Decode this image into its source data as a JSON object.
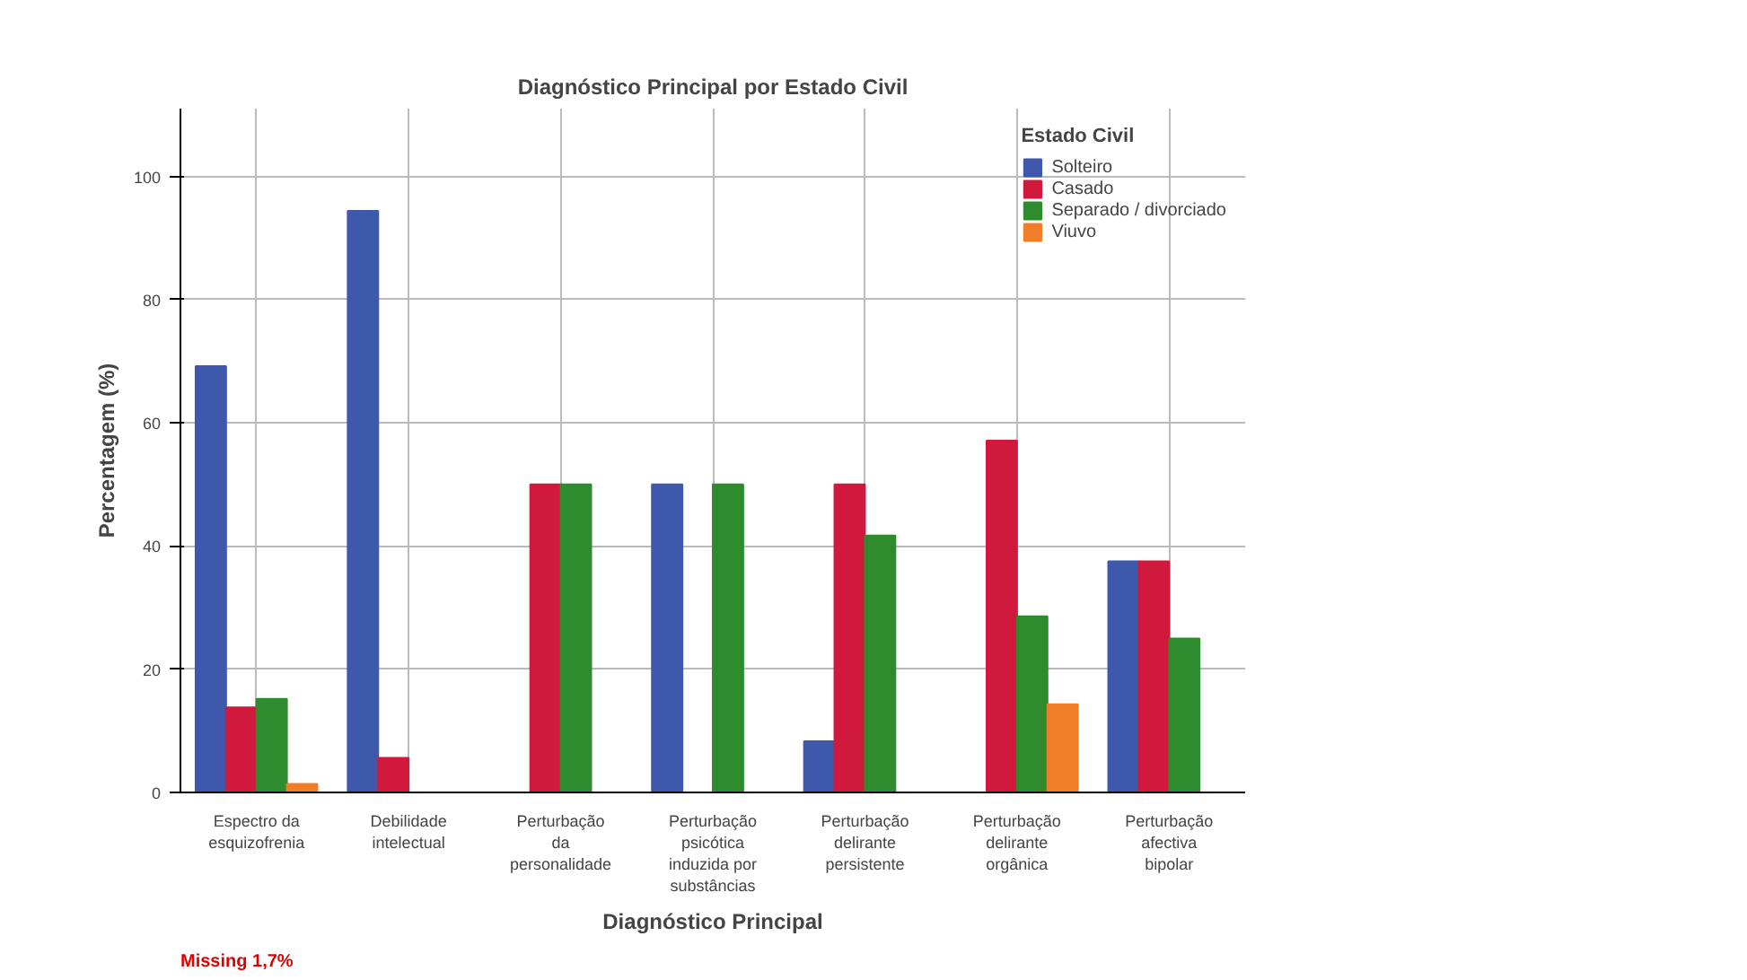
{
  "chart_data": {
    "type": "bar",
    "title": "Diagnóstico Principal por Estado Civil",
    "xlabel": "Diagnóstico Principal",
    "ylabel": "Percentagem (%)",
    "legend_title": "Estado Civil",
    "categories": [
      "Espectro da esquizofrenia",
      "Debilidade intelectual",
      "Perturbação da personalidade",
      "Perturbação psicótica induzida por substâncias",
      "Perturbação delirante persistente",
      "Perturbação delirante orgânica",
      "Perturbação afectiva bipolar"
    ],
    "series": [
      {
        "name": "Solteiro",
        "color": "#3e58ac",
        "values": [
          69.2,
          94.4,
          null,
          50,
          8.3,
          null,
          37.5
        ]
      },
      {
        "name": "Casado",
        "color": "#d1193d",
        "values": [
          13.8,
          5.6,
          50,
          null,
          50,
          57.1,
          37.5
        ]
      },
      {
        "name": "Separado / divorciado",
        "color": "#2e8b2e",
        "values": [
          15.2,
          null,
          50,
          50,
          41.7,
          28.6,
          25
        ]
      },
      {
        "name": "Viuvo",
        "color": "#f07d28",
        "values": [
          1.4,
          null,
          null,
          null,
          null,
          14.3,
          null
        ]
      }
    ],
    "ylim": [
      0,
      111
    ],
    "yticks": [
      0,
      20,
      40,
      60,
      80,
      100
    ],
    "grid": true,
    "legend": "top right",
    "annotations": [
      "Missing 1,7%"
    ]
  }
}
